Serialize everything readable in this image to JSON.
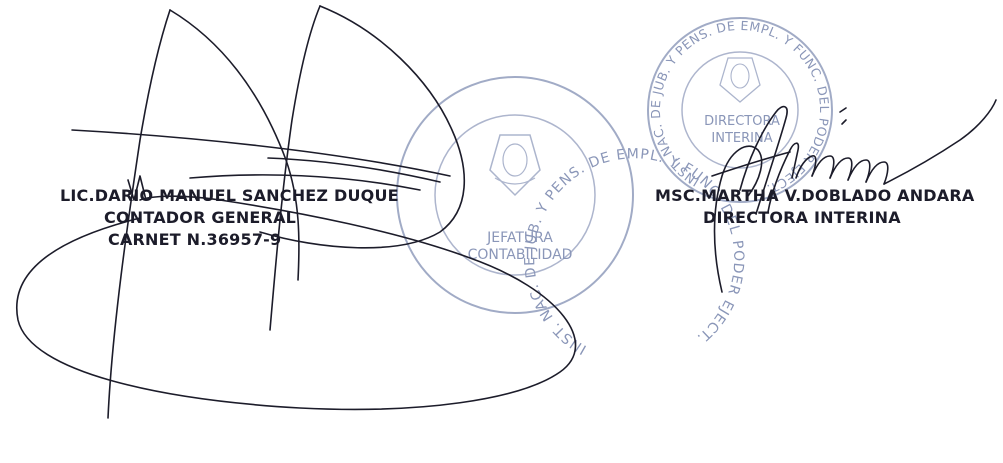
{
  "left_signatory": {
    "name": "LIC.DARIO MANUEL SANCHEZ DUQUE",
    "title": "CONTADOR GENERAL",
    "id_line": "CARNET N.36957-9"
  },
  "right_signatory": {
    "name": "MSC.MARTHA V.DOBLADO ANDARA",
    "title": "DIRECTORA INTERINA"
  },
  "stamp_left": {
    "ring_text": "INST. NAC. DE JUB. Y PENS. DE EMPL. Y FUNC. DEL PODER EJECT.",
    "center_line1": "JEFATURA",
    "center_line2": "CONTABILIDAD"
  },
  "stamp_right": {
    "ring_text": "INST. NAC. DE JUB. Y PENS. DE EMPL. Y FUNC. DEL PODER EJECT.",
    "center_line1": "DIRECTORA",
    "center_line2": "INTERINA"
  },
  "colors": {
    "stamp": "#8a96b8",
    "ink": "#1c1c2a",
    "text": "#1c1c2a"
  }
}
